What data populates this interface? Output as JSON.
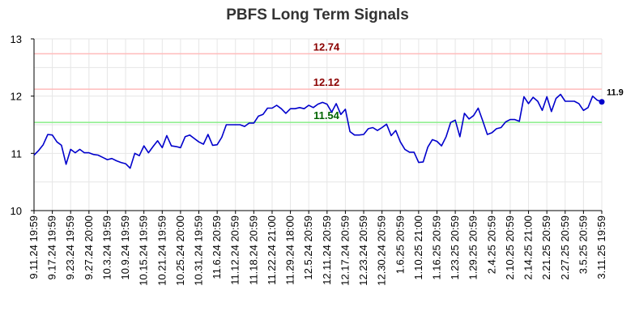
{
  "chart_data": {
    "type": "line",
    "title": "PBFS Long Term Signals",
    "xlabel": "",
    "ylabel": "",
    "ylim": [
      10,
      13
    ],
    "y_ticks": [
      "10",
      "11",
      "12",
      "13"
    ],
    "grid": true,
    "x_tick_labels": [
      "9.11.24 19:59",
      "9.17.24 19:59",
      "9.23.24 19:59",
      "9.27.24 20:00",
      "10.3.24 19:59",
      "10.9.24 19:59",
      "10.15.24 19:59",
      "10.21.24 19:59",
      "10.25.24 20:00",
      "10.31.24 19:59",
      "11.6.24 20:59",
      "11.12.24 20:59",
      "11.18.24 20:59",
      "11.22.24 21:00",
      "11.29.24 18:00",
      "12.5.24 20:59",
      "12.11.24 20:59",
      "12.17.24 20:59",
      "12.23.24 20:59",
      "12.30.24 20:59",
      "1.6.25 20:59",
      "1.10.25 21:00",
      "1.16.25 20:59",
      "1.23.25 20:59",
      "1.29.25 20:59",
      "2.4.25 20:59",
      "2.10.25 20:59",
      "2.14.25 21:00",
      "2.21.25 20:59",
      "2.27.25 20:59",
      "3.5.25 20:59",
      "3.11.25 19:59"
    ],
    "reference_lines": [
      {
        "value": 12.74,
        "label": "12.74",
        "color": "#ffbbbb",
        "label_color": "#8b0000"
      },
      {
        "value": 12.12,
        "label": "12.12",
        "color": "#ffbbbb",
        "label_color": "#8b0000"
      },
      {
        "value": 11.54,
        "label": "11.54",
        "color": "#88ee88",
        "label_color": "#006400"
      }
    ],
    "series": [
      {
        "color": "#0000cc",
        "values": [
          10.97,
          11.05,
          11.15,
          11.33,
          11.32,
          11.2,
          11.14,
          10.81,
          11.07,
          11.01,
          11.07,
          11.01,
          11.01,
          10.98,
          10.97,
          10.93,
          10.89,
          10.91,
          10.87,
          10.84,
          10.82,
          10.74,
          11.0,
          10.96,
          11.13,
          11.01,
          11.12,
          11.22,
          11.1,
          11.31,
          11.13,
          11.12,
          11.1,
          11.29,
          11.32,
          11.26,
          11.2,
          11.16,
          11.33,
          11.14,
          11.15,
          11.28,
          11.5,
          11.5,
          11.5,
          11.5,
          11.47,
          11.53,
          11.53,
          11.65,
          11.68,
          11.79,
          11.79,
          11.84,
          11.78,
          11.7,
          11.78,
          11.78,
          11.8,
          11.78,
          11.84,
          11.8,
          11.86,
          11.89,
          11.86,
          11.72,
          11.87,
          11.68,
          11.77,
          11.38,
          11.32,
          11.32,
          11.33,
          11.43,
          11.45,
          11.4,
          11.45,
          11.51,
          11.31,
          11.4,
          11.2,
          11.07,
          11.02,
          11.02,
          10.84,
          10.85,
          11.11,
          11.24,
          11.21,
          11.13,
          11.29,
          11.54,
          11.58,
          11.29,
          11.7,
          11.6,
          11.66,
          11.79,
          11.57,
          11.33,
          11.36,
          11.43,
          11.45,
          11.55,
          11.59,
          11.59,
          11.56,
          11.99,
          11.87,
          11.98,
          11.91,
          11.75,
          11.99,
          11.73,
          11.96,
          12.03,
          11.91,
          11.91,
          11.91,
          11.87,
          11.75,
          11.8,
          12.0,
          11.93,
          11.9
        ]
      }
    ],
    "last_value_label": "11.9"
  }
}
